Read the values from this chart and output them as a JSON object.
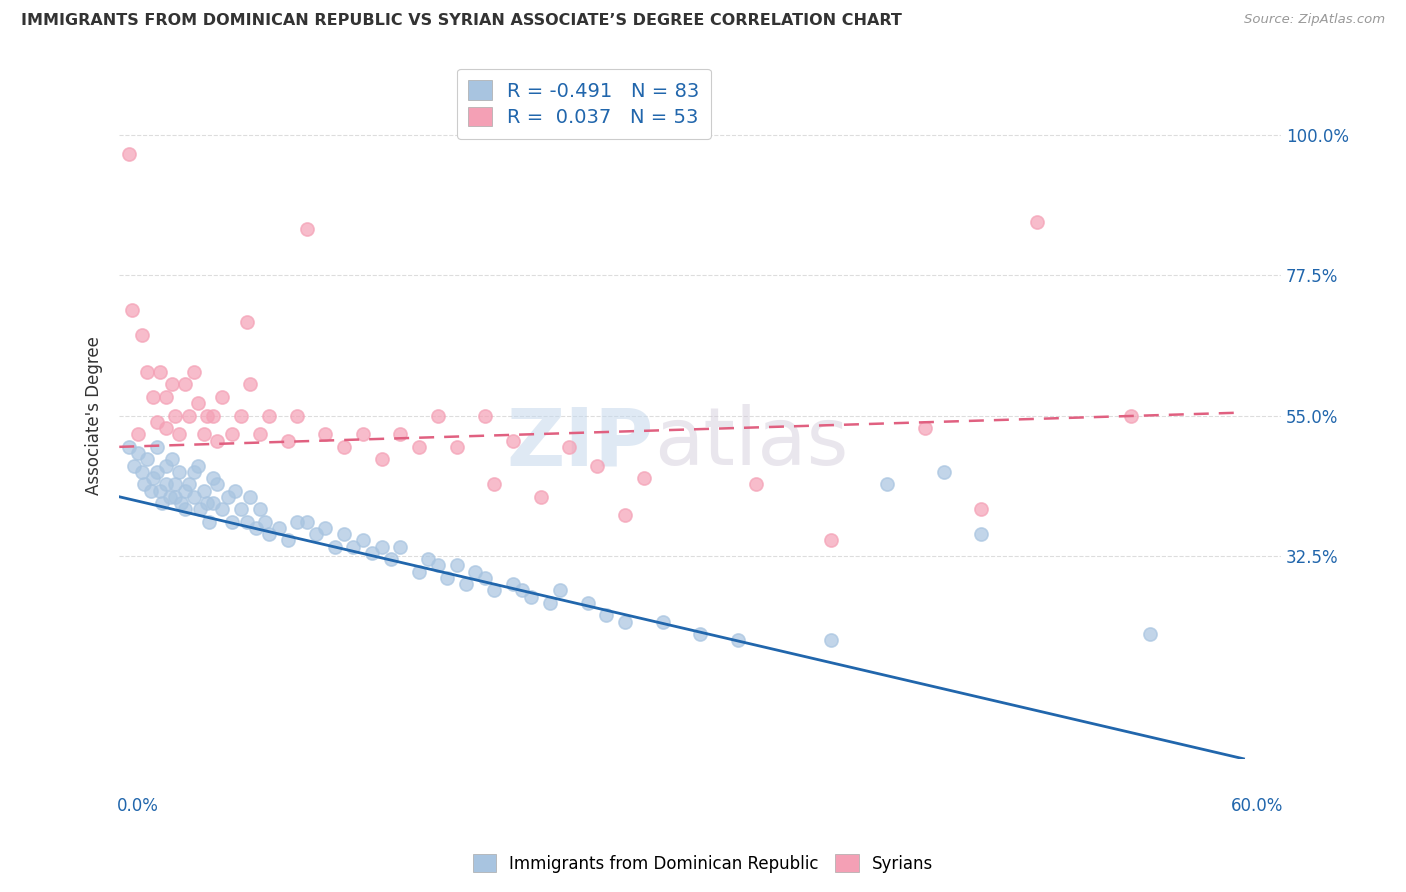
{
  "title": "IMMIGRANTS FROM DOMINICAN REPUBLIC VS SYRIAN ASSOCIATE’S DEGREE CORRELATION CHART",
  "source": "Source: ZipAtlas.com",
  "ylabel": "Associate's Degree",
  "watermark": "ZIPatlas",
  "blue_R": -0.491,
  "blue_N": 83,
  "pink_R": 0.037,
  "pink_N": 53,
  "blue_scatter_color": "#a8c4e0",
  "blue_line_color": "#2166ac",
  "pink_scatter_color": "#f4a0b5",
  "pink_line_color": "#e06080",
  "legend_label_blue": "Immigrants from Dominican Republic",
  "legend_label_pink": "Syrians",
  "legend_text_color": "#2166ac",
  "right_tick_color": "#2166ac",
  "title_color": "#333333",
  "source_color": "#999999",
  "grid_color": "#dddddd",
  "background_color": "#ffffff",
  "watermark_color": "#c8d8e8",
  "ytick_vals": [
    0.325,
    0.55,
    0.775,
    1.0
  ],
  "ytick_labels": [
    "32.5%",
    "55.0%",
    "77.5%",
    "100.0%"
  ],
  "ylim": [
    0.0,
    1.1
  ],
  "xlim": [
    0.0,
    0.62
  ],
  "blue_line_x": [
    0.0,
    0.6
  ],
  "blue_line_y": [
    0.42,
    0.0
  ],
  "pink_line_x": [
    0.0,
    0.6
  ],
  "pink_line_y": [
    0.5,
    0.555
  ],
  "blue_scatter_x": [
    0.005,
    0.008,
    0.01,
    0.012,
    0.013,
    0.015,
    0.017,
    0.018,
    0.02,
    0.02,
    0.022,
    0.023,
    0.025,
    0.025,
    0.027,
    0.028,
    0.03,
    0.03,
    0.032,
    0.033,
    0.035,
    0.035,
    0.037,
    0.04,
    0.04,
    0.042,
    0.043,
    0.045,
    0.047,
    0.048,
    0.05,
    0.05,
    0.052,
    0.055,
    0.058,
    0.06,
    0.062,
    0.065,
    0.068,
    0.07,
    0.073,
    0.075,
    0.078,
    0.08,
    0.085,
    0.09,
    0.095,
    0.1,
    0.105,
    0.11,
    0.115,
    0.12,
    0.125,
    0.13,
    0.135,
    0.14,
    0.145,
    0.15,
    0.16,
    0.165,
    0.17,
    0.175,
    0.18,
    0.185,
    0.19,
    0.195,
    0.2,
    0.21,
    0.215,
    0.22,
    0.23,
    0.235,
    0.25,
    0.26,
    0.27,
    0.29,
    0.31,
    0.33,
    0.38,
    0.41,
    0.44,
    0.46,
    0.55
  ],
  "blue_scatter_y": [
    0.5,
    0.47,
    0.49,
    0.46,
    0.44,
    0.48,
    0.43,
    0.45,
    0.5,
    0.46,
    0.43,
    0.41,
    0.47,
    0.44,
    0.42,
    0.48,
    0.44,
    0.42,
    0.46,
    0.41,
    0.43,
    0.4,
    0.44,
    0.46,
    0.42,
    0.47,
    0.4,
    0.43,
    0.41,
    0.38,
    0.45,
    0.41,
    0.44,
    0.4,
    0.42,
    0.38,
    0.43,
    0.4,
    0.38,
    0.42,
    0.37,
    0.4,
    0.38,
    0.36,
    0.37,
    0.35,
    0.38,
    0.38,
    0.36,
    0.37,
    0.34,
    0.36,
    0.34,
    0.35,
    0.33,
    0.34,
    0.32,
    0.34,
    0.3,
    0.32,
    0.31,
    0.29,
    0.31,
    0.28,
    0.3,
    0.29,
    0.27,
    0.28,
    0.27,
    0.26,
    0.25,
    0.27,
    0.25,
    0.23,
    0.22,
    0.22,
    0.2,
    0.19,
    0.19,
    0.44,
    0.46,
    0.36,
    0.2
  ],
  "pink_scatter_x": [
    0.005,
    0.007,
    0.01,
    0.012,
    0.015,
    0.018,
    0.02,
    0.022,
    0.025,
    0.025,
    0.028,
    0.03,
    0.032,
    0.035,
    0.037,
    0.04,
    0.042,
    0.045,
    0.047,
    0.05,
    0.052,
    0.055,
    0.06,
    0.065,
    0.068,
    0.07,
    0.075,
    0.08,
    0.09,
    0.095,
    0.1,
    0.11,
    0.12,
    0.13,
    0.14,
    0.15,
    0.16,
    0.17,
    0.18,
    0.195,
    0.2,
    0.21,
    0.225,
    0.24,
    0.255,
    0.27,
    0.28,
    0.34,
    0.38,
    0.43,
    0.46,
    0.49,
    0.54
  ],
  "pink_scatter_y": [
    0.97,
    0.72,
    0.52,
    0.68,
    0.62,
    0.58,
    0.54,
    0.62,
    0.58,
    0.53,
    0.6,
    0.55,
    0.52,
    0.6,
    0.55,
    0.62,
    0.57,
    0.52,
    0.55,
    0.55,
    0.51,
    0.58,
    0.52,
    0.55,
    0.7,
    0.6,
    0.52,
    0.55,
    0.51,
    0.55,
    0.85,
    0.52,
    0.5,
    0.52,
    0.48,
    0.52,
    0.5,
    0.55,
    0.5,
    0.55,
    0.44,
    0.51,
    0.42,
    0.5,
    0.47,
    0.39,
    0.45,
    0.44,
    0.35,
    0.53,
    0.4,
    0.86,
    0.55
  ]
}
